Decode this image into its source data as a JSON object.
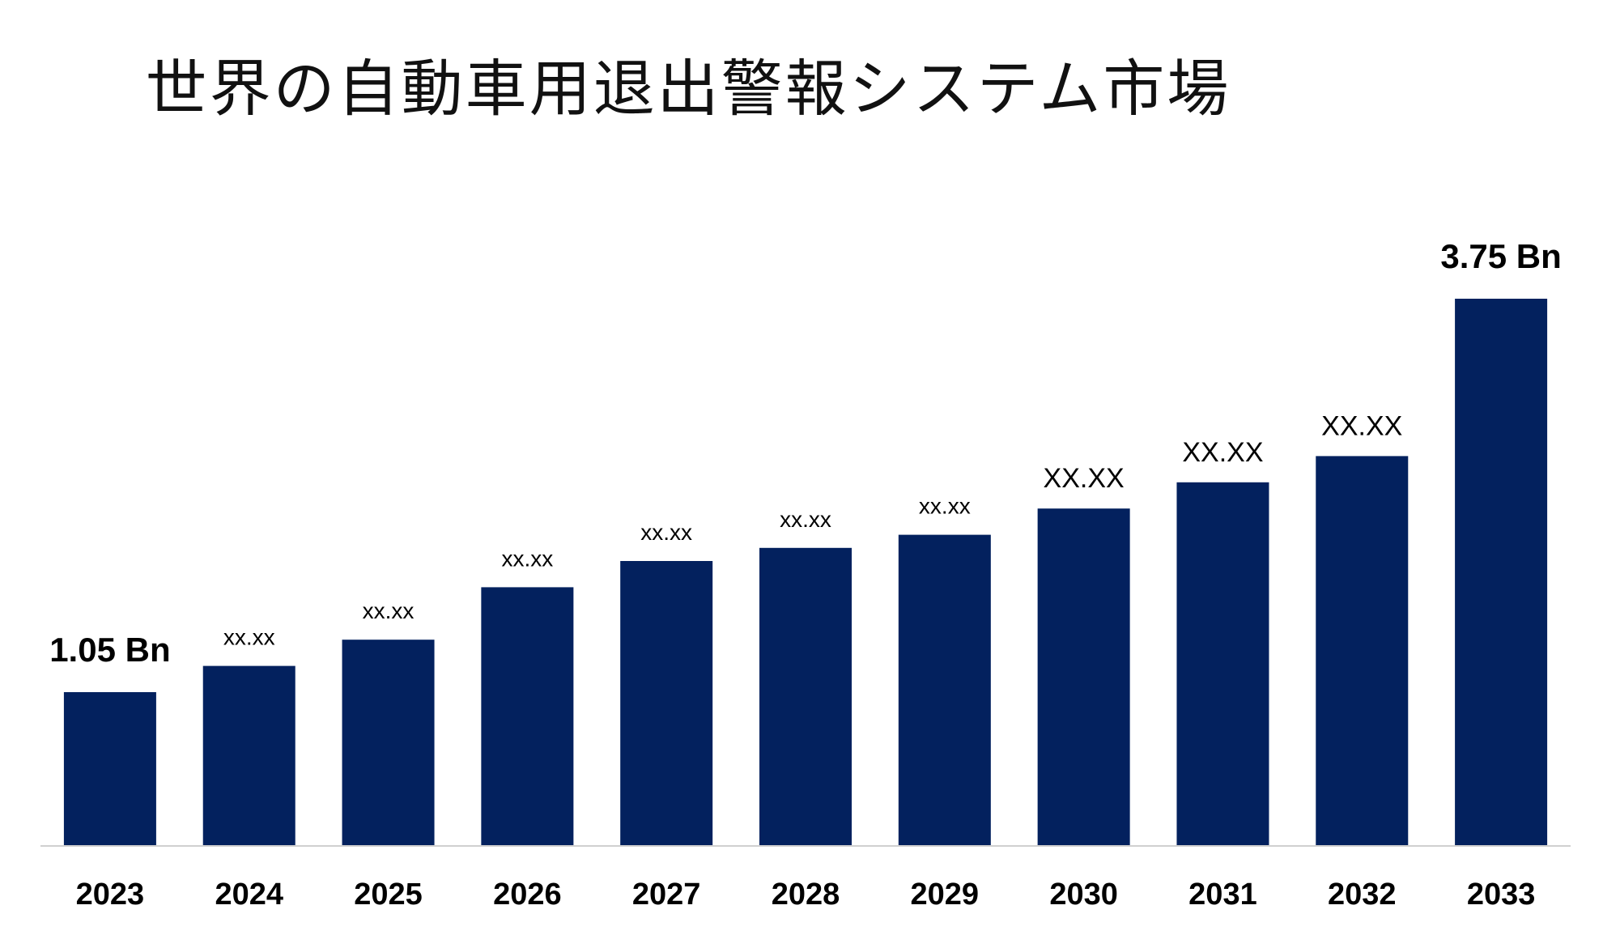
{
  "chart_data": {
    "type": "bar",
    "title": "世界の自動車用退出警報システム市場",
    "categories": [
      "2023",
      "2024",
      "2025",
      "2026",
      "2027",
      "2028",
      "2029",
      "2030",
      "2031",
      "2032",
      "2033"
    ],
    "values": [
      1.05,
      1.23,
      1.41,
      1.77,
      1.95,
      2.04,
      2.13,
      2.31,
      2.49,
      2.67,
      3.75
    ],
    "data_labels": [
      "1.05 Bn",
      "xx.xx",
      "xx.xx",
      "xx.xx",
      "xx.xx",
      "xx.xx",
      "xx.xx",
      "XX.XX",
      "XX.XX",
      "XX.XX",
      "3.75 Bn"
    ],
    "ylim": [
      0,
      4
    ],
    "grid": false,
    "legend": "none",
    "colors": {
      "bar": "#03215e",
      "axis": "#d0d0d0"
    }
  }
}
